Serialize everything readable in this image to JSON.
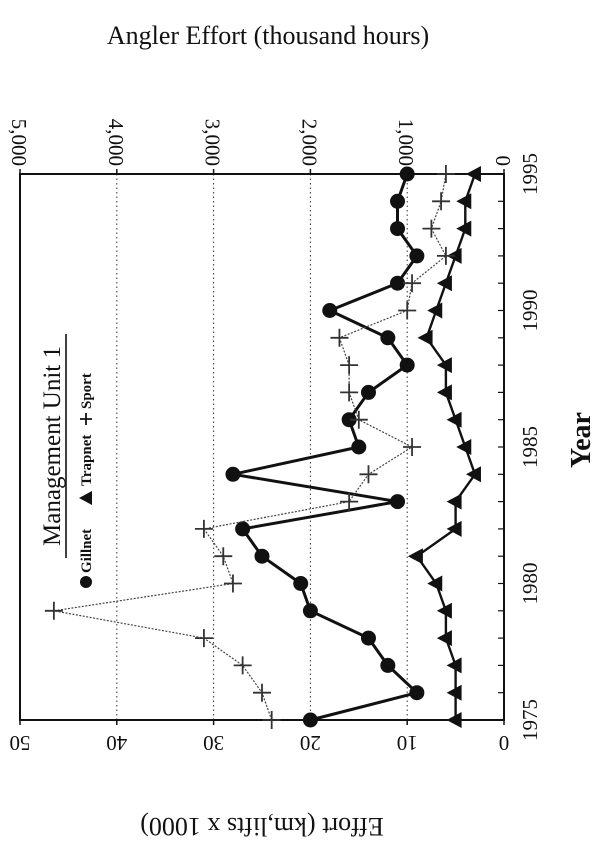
{
  "chart_data": {
    "type": "line",
    "top_axis_title": "Angler Effort (thousand hours)",
    "top_axis_ticks": [
      "0",
      "1,000",
      "2,000",
      "3,000",
      "4,000",
      "5,000"
    ],
    "left_axis_title": "Effort (km,lifts x 1000)",
    "left_axis_ticks": [
      "0",
      "10",
      "20",
      "30",
      "40",
      "50"
    ],
    "year_axis_title": "Year",
    "year_ticks": [
      "1975",
      "1980",
      "1985",
      "1990",
      "1995"
    ],
    "year_range": [
      1975,
      1995
    ],
    "effort_range": [
      0,
      50
    ],
    "angler_range": [
      0,
      5000
    ],
    "grid": true,
    "legend": {
      "title": "Management Unit 1",
      "gillnet": "Gillnet",
      "trapnet": "Trapnet",
      "sport": "Sport"
    },
    "series": [
      {
        "name": "Gillnet",
        "axis": "effort",
        "marker": "circle",
        "x": [
          1975,
          1976,
          1977,
          1978,
          1979,
          1980,
          1981,
          1982,
          1983,
          1984,
          1985,
          1986,
          1987,
          1988,
          1989,
          1990,
          1991,
          1992,
          1993,
          1994,
          1995
        ],
        "values": [
          20,
          9,
          12,
          14,
          20,
          21,
          25,
          27,
          11,
          28,
          15,
          16,
          14,
          10,
          12,
          18,
          11,
          9,
          11,
          11,
          10
        ]
      },
      {
        "name": "Trapnet",
        "axis": "effort",
        "marker": "triangle",
        "x": [
          1975,
          1976,
          1977,
          1978,
          1979,
          1980,
          1981,
          1982,
          1983,
          1984,
          1985,
          1986,
          1987,
          1988,
          1989,
          1990,
          1991,
          1992,
          1993,
          1994,
          1995
        ],
        "values": [
          5,
          5,
          5,
          6,
          6,
          7,
          9,
          5,
          5,
          3,
          4,
          5,
          6,
          6,
          8,
          7,
          6,
          5,
          4,
          4,
          3
        ]
      },
      {
        "name": "Sport",
        "axis": "angler",
        "marker": "plus",
        "x": [
          1975,
          1976,
          1977,
          1978,
          1979,
          1980,
          1981,
          1982,
          1983,
          1984,
          1985,
          1986,
          1987,
          1988,
          1989,
          1990,
          1991,
          1992,
          1993,
          1994,
          1995
        ],
        "values": [
          2400,
          2500,
          2700,
          3100,
          4650,
          2800,
          2900,
          3100,
          1600,
          1400,
          950,
          1500,
          1600,
          1600,
          1700,
          1000,
          950,
          600,
          750,
          650,
          600
        ]
      }
    ]
  }
}
